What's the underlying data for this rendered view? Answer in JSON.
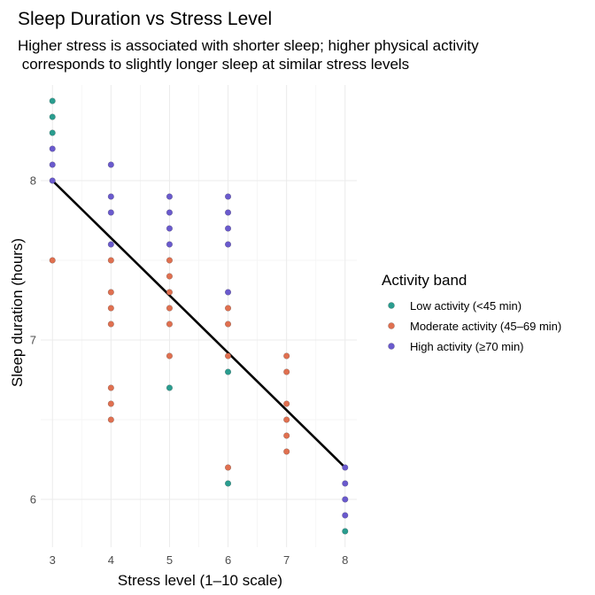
{
  "chart_data": {
    "type": "scatter",
    "title": "Sleep Duration vs Stress Level",
    "subtitle_lines": [
      "Higher stress is associated with shorter sleep; higher physical activity",
      " corresponds to slightly longer sleep at similar stress levels"
    ],
    "xlabel": "Stress level (1–10 scale)",
    "ylabel": "Sleep duration (hours)",
    "xlim": [
      2.8,
      8.2
    ],
    "ylim": [
      5.7,
      8.6
    ],
    "x_ticks": [
      3,
      4,
      5,
      6,
      7,
      8
    ],
    "y_ticks": [
      6,
      7,
      8
    ],
    "grid": true,
    "legend": {
      "title": "Activity band",
      "position": "right",
      "entries": [
        {
          "key": "low",
          "label": "Low activity (<45 min)",
          "color": "#2a9d8f"
        },
        {
          "key": "moderate",
          "label": "Moderate activity (45–69 min)",
          "color": "#e07050"
        },
        {
          "key": "high",
          "label": "High activity (≥70 min)",
          "color": "#6a5acd"
        }
      ]
    },
    "series": [
      {
        "name": "Low activity (<45 min)",
        "key": "low",
        "points": [
          [
            3,
            8.5
          ],
          [
            3,
            8.4
          ],
          [
            3,
            8.3
          ],
          [
            5,
            6.7
          ],
          [
            6,
            6.8
          ],
          [
            6,
            6.1
          ],
          [
            8,
            5.8
          ]
        ]
      },
      {
        "name": "Moderate activity (45–69 min)",
        "key": "moderate",
        "points": [
          [
            3,
            7.5
          ],
          [
            4,
            7.5
          ],
          [
            4,
            7.3
          ],
          [
            4,
            7.2
          ],
          [
            4,
            7.1
          ],
          [
            4,
            6.7
          ],
          [
            4,
            6.6
          ],
          [
            4,
            6.5
          ],
          [
            5,
            7.5
          ],
          [
            5,
            7.4
          ],
          [
            5,
            7.3
          ],
          [
            5,
            7.2
          ],
          [
            5,
            7.1
          ],
          [
            5,
            6.9
          ],
          [
            6,
            7.2
          ],
          [
            6,
            7.1
          ],
          [
            6,
            6.9
          ],
          [
            6,
            6.2
          ],
          [
            7,
            6.9
          ],
          [
            7,
            6.8
          ],
          [
            7,
            6.6
          ],
          [
            7,
            6.5
          ],
          [
            7,
            6.4
          ],
          [
            7,
            6.3
          ]
        ]
      },
      {
        "name": "High activity (≥70 min)",
        "key": "high",
        "points": [
          [
            3,
            8.2
          ],
          [
            3,
            8.1
          ],
          [
            3,
            8.0
          ],
          [
            4,
            8.1
          ],
          [
            4,
            7.9
          ],
          [
            4,
            7.8
          ],
          [
            4,
            7.6
          ],
          [
            5,
            7.9
          ],
          [
            5,
            7.8
          ],
          [
            5,
            7.7
          ],
          [
            5,
            7.6
          ],
          [
            6,
            7.9
          ],
          [
            6,
            7.8
          ],
          [
            6,
            7.7
          ],
          [
            6,
            7.6
          ],
          [
            6,
            7.3
          ],
          [
            8,
            6.2
          ],
          [
            8,
            6.1
          ],
          [
            8,
            6.0
          ],
          [
            8,
            5.9
          ]
        ]
      }
    ],
    "trend_line": {
      "x": [
        3,
        8
      ],
      "y": [
        8.0,
        6.2
      ],
      "color": "#000000"
    }
  }
}
